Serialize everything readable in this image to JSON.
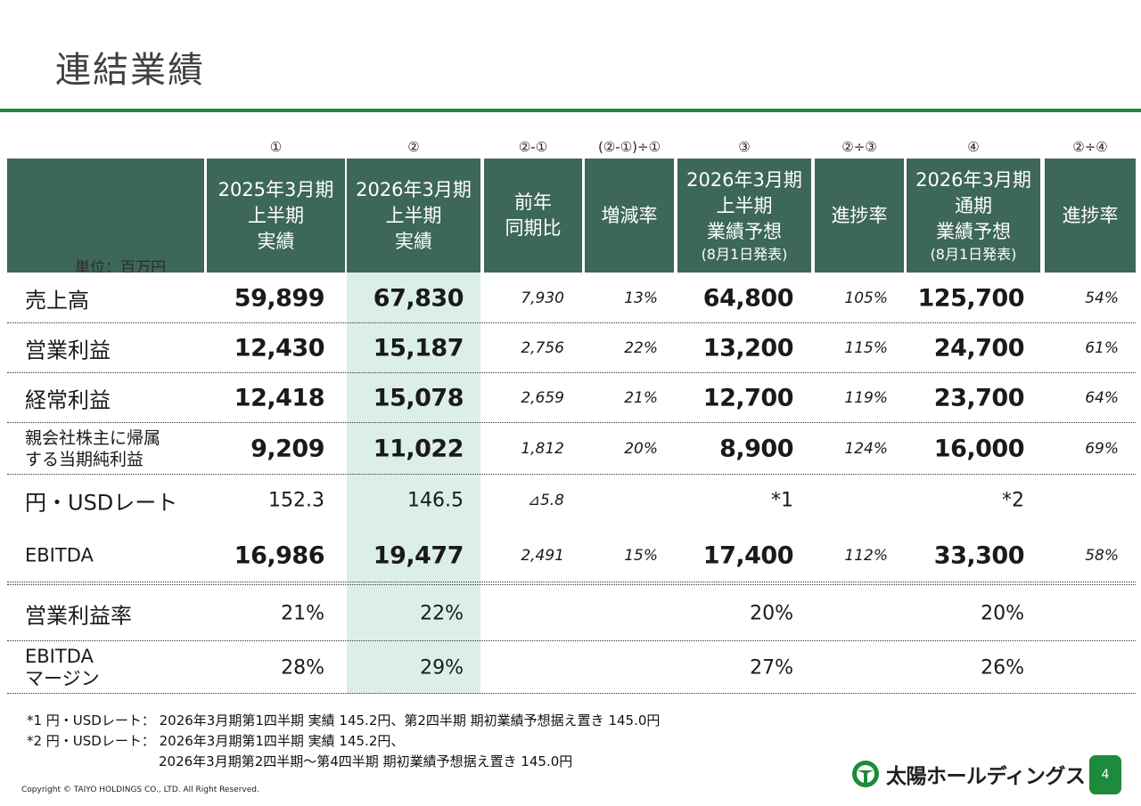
{
  "page": {
    "title": "連結業績",
    "page_number": "4",
    "copyright": "Copyright © TAIYO HOLDINGS CO., LTD.  All Right Reserved.",
    "brand_name": "太陽ホールディングス",
    "accent_color": "#1e8a3c",
    "header_color": "#3d6758",
    "highlight_color": "#dcefe6"
  },
  "table": {
    "unit": "単位：百万円",
    "col_numbers": [
      "①",
      "②",
      "②-①",
      "(②-①)÷①",
      "③",
      "②÷③",
      "④",
      "②÷④"
    ],
    "headers": [
      [
        "2025年3月期",
        "上半期",
        "実績"
      ],
      [
        "2026年3月期",
        "上半期",
        "実績"
      ],
      [
        "前年",
        "同期比"
      ],
      [
        "増減率"
      ],
      [
        "2026年3月期",
        "上半期",
        "業績予想",
        "(8月1日発表)"
      ],
      [
        "進捗率"
      ],
      [
        "2026年3月期",
        "通期",
        "業績予想",
        "(8月1日発表)"
      ],
      [
        "進捗率"
      ]
    ],
    "rows": [
      {
        "label": "売上高",
        "v": [
          "59,899",
          "67,830",
          "7,930",
          "13%",
          "64,800",
          "105%",
          "125,700",
          "54%"
        ]
      },
      {
        "label": "営業利益",
        "v": [
          "12,430",
          "15,187",
          "2,756",
          "22%",
          "13,200",
          "115%",
          "24,700",
          "61%"
        ]
      },
      {
        "label": "経常利益",
        "v": [
          "12,418",
          "15,078",
          "2,659",
          "21%",
          "12,700",
          "119%",
          "23,700",
          "64%"
        ]
      },
      {
        "label_lines": [
          "親会社株主に帰属",
          "する当期純利益"
        ],
        "v": [
          "9,209",
          "11,022",
          "1,812",
          "20%",
          "8,900",
          "124%",
          "16,000",
          "69%"
        ]
      },
      {
        "label": "円・USDレート",
        "v": [
          "152.3",
          "146.5",
          "⊿5.8",
          "",
          "*1",
          "",
          "*2",
          ""
        ]
      },
      {
        "label": "EBITDA",
        "v": [
          "16,986",
          "19,477",
          "2,491",
          "15%",
          "17,400",
          "112%",
          "33,300",
          "58%"
        ]
      },
      {
        "label": "営業利益率",
        "v": [
          "21%",
          "22%",
          "",
          "",
          "20%",
          "",
          "20%",
          ""
        ]
      },
      {
        "label_lines": [
          "EBITDA",
          "マージン"
        ],
        "v": [
          "28%",
          "29%",
          "",
          "",
          "27%",
          "",
          "26%",
          ""
        ]
      }
    ]
  },
  "notes": [
    "*1 円・USDレート：  2026年3月期第1四半期 実績 145.2円、第2四半期 期初業績予想据え置き 145.0円",
    "*2 円・USDレート：  2026年3月期第1四半期 実績 145.2円、",
    "2026年3月期第2四半期～第4四半期 期初業績予想据え置き 145.0円"
  ]
}
